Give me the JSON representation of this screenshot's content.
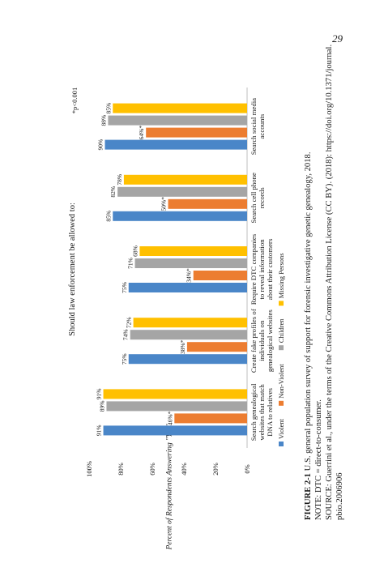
{
  "page_number": "29",
  "caption": {
    "figure_label": "FIGURE 2-1",
    "figure_text": "U.S. general population survey of support for forensic investigative genetic genealogy, 2018.",
    "note": "NOTE: DTC = direct-to-consumer.",
    "source": "SOURCE: Guerrini et al., under the terms of the Creative Commons Attribution License (CC BY). (2018): https://doi.org/10.1371/journal.",
    "source_cont": "pbio.2006906"
  },
  "chart_data": {
    "type": "bar",
    "title": "Should law enforcement be allowed to:",
    "ylabel": "Percent of Respondents Answering \"Yes\"",
    "ylim": [
      0,
      100
    ],
    "yticks": [
      "0%",
      "20%",
      "40%",
      "60%",
      "80%",
      "100%"
    ],
    "footnote": "*p<0.001",
    "categories": [
      "Search genealogical websites that match DNA to relatives",
      "Create fake profiles of individuals on genealogical websites",
      "Require DTC companies to reveal information about their customers",
      "Search cell phone records",
      "Search social media accounts"
    ],
    "category_lines": [
      [
        "Search genealogical",
        "websites that match",
        "DNA to relatives"
      ],
      [
        "Create fake profiles of",
        "individuals on",
        "genealogical websites"
      ],
      [
        "Require DTC companies",
        "to reveal information",
        "about their customers"
      ],
      [
        "Search cell phone",
        "records"
      ],
      [
        "Search social media",
        "accounts"
      ]
    ],
    "series": [
      {
        "name": "Violent",
        "color": "#4a86c8",
        "values": [
          91,
          75,
          75,
          85,
          90
        ],
        "labels": [
          "91%",
          "75%",
          "75%",
          "85%",
          "90%"
        ]
      },
      {
        "name": "Non-Violent",
        "color": "#ec7d31",
        "values": [
          46,
          38,
          34,
          50,
          64
        ],
        "labels": [
          "46%*",
          "38%*",
          "34%*",
          "50%*",
          "64%*"
        ]
      },
      {
        "name": "Children",
        "color": "#a5a5a5",
        "values": [
          89,
          74,
          71,
          82,
          88
        ],
        "labels": [
          "89%",
          "74%",
          "71%",
          "82%",
          "88%"
        ]
      },
      {
        "name": "Missing Persons",
        "color": "#ffc000",
        "values": [
          91,
          72,
          68,
          78,
          85
        ],
        "labels": [
          "91%",
          "72%",
          "68%",
          "78%",
          "85%"
        ]
      }
    ],
    "legend_position": "bottom",
    "grid": false
  }
}
